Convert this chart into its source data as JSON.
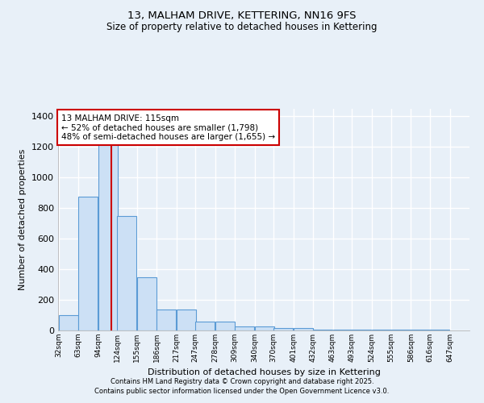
{
  "title1": "13, MALHAM DRIVE, KETTERING, NN16 9FS",
  "title2": "Size of property relative to detached houses in Kettering",
  "xlabel": "Distribution of detached houses by size in Kettering",
  "ylabel": "Number of detached properties",
  "bar_color": "#cce0f5",
  "bar_edge_color": "#5b9bd5",
  "background_color": "#e8f0f8",
  "grid_color": "#ffffff",
  "red_line_x": 115,
  "annotation_title": "13 MALHAM DRIVE: 115sqm",
  "annotation_line2": "← 52% of detached houses are smaller (1,798)",
  "annotation_line3": "48% of semi-detached houses are larger (1,655) →",
  "annotation_box_color": "#ffffff",
  "annotation_border_color": "#cc0000",
  "categories": [
    "32sqm",
    "63sqm",
    "94sqm",
    "124sqm",
    "155sqm",
    "186sqm",
    "217sqm",
    "247sqm",
    "278sqm",
    "309sqm",
    "340sqm",
    "370sqm",
    "401sqm",
    "432sqm",
    "463sqm",
    "493sqm",
    "524sqm",
    "555sqm",
    "586sqm",
    "616sqm",
    "647sqm"
  ],
  "bin_edges": [
    32,
    63,
    94,
    124,
    155,
    186,
    217,
    247,
    278,
    309,
    340,
    370,
    401,
    432,
    463,
    493,
    524,
    555,
    586,
    616,
    647
  ],
  "values": [
    100,
    875,
    1250,
    750,
    350,
    135,
    135,
    60,
    60,
    25,
    25,
    15,
    15,
    5,
    5,
    5,
    5,
    5,
    5,
    5
  ],
  "ylim": [
    0,
    1450
  ],
  "yticks": [
    0,
    200,
    400,
    600,
    800,
    1000,
    1200,
    1400
  ],
  "footnote1": "Contains HM Land Registry data © Crown copyright and database right 2025.",
  "footnote2": "Contains public sector information licensed under the Open Government Licence v3.0."
}
